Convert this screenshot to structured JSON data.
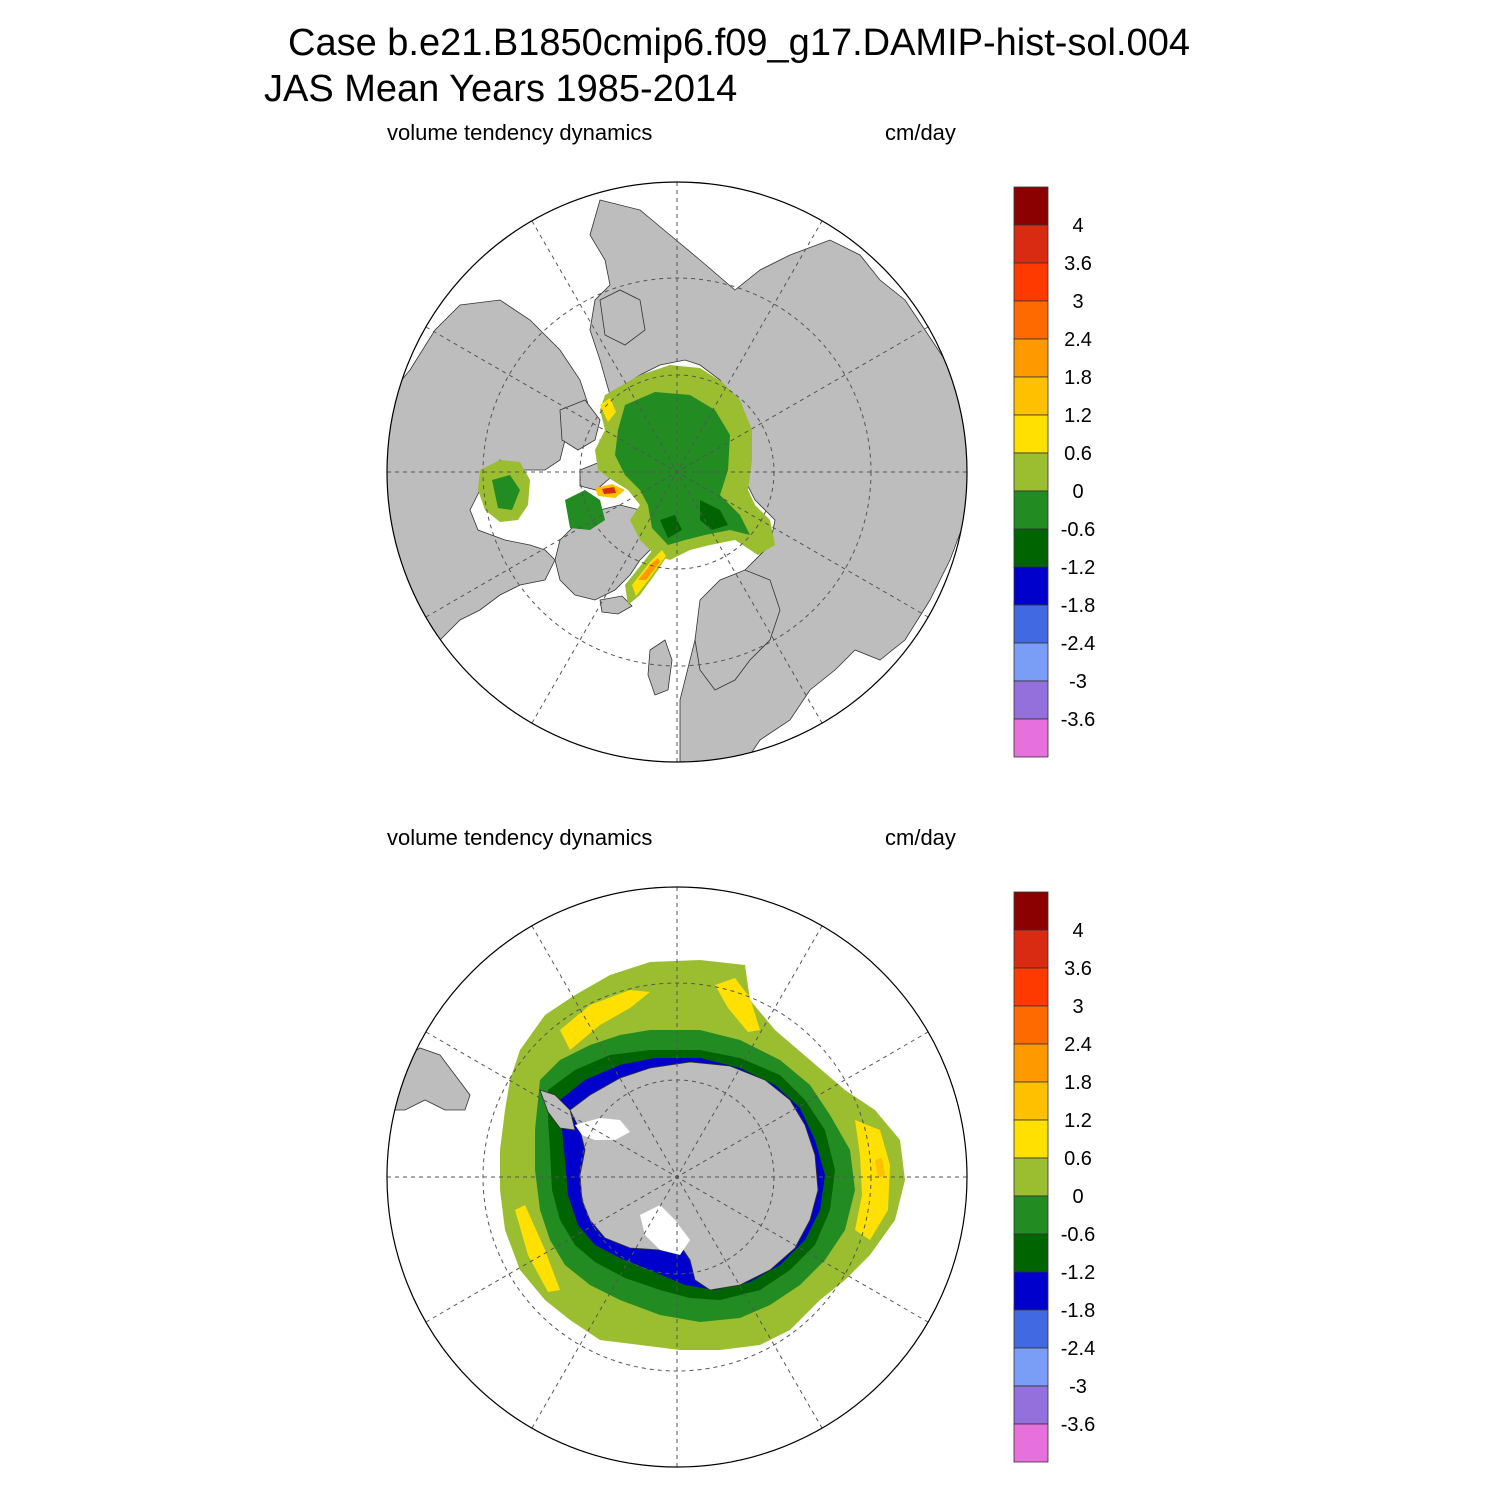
{
  "title": {
    "line1": "Case b.e21.B1850cmip6.f09_g17.DAMIP-hist-sol.004",
    "line2": "JAS Mean   Years 1985-2014"
  },
  "panels": [
    {
      "id": "arctic",
      "hemisphere": "north",
      "left_label": "volume tendency dynamics",
      "right_label": "cm/day"
    },
    {
      "id": "antarctic",
      "hemisphere": "south",
      "left_label": "volume tendency dynamics",
      "right_label": "cm/day"
    }
  ],
  "colorbar": {
    "units": "cm/day",
    "levels": [
      "4",
      "3.6",
      "3",
      "2.4",
      "1.8",
      "1.2",
      "0.6",
      "0",
      "-0.6",
      "-1.2",
      "-1.8",
      "-2.4",
      "-3",
      "-3.6"
    ],
    "colors": [
      "#8b0000",
      "#d92a12",
      "#ff3a00",
      "#ff6a00",
      "#ff9900",
      "#ffc000",
      "#ffe000",
      "#9abe30",
      "#228b22",
      "#006400",
      "#0000cd",
      "#4169e1",
      "#7a9ef5",
      "#9370db",
      "#e670dc"
    ]
  },
  "map_colors": {
    "land": "#bdbdbd",
    "no_ice_ocean": "#ffffff",
    "grid": "#555555"
  }
}
